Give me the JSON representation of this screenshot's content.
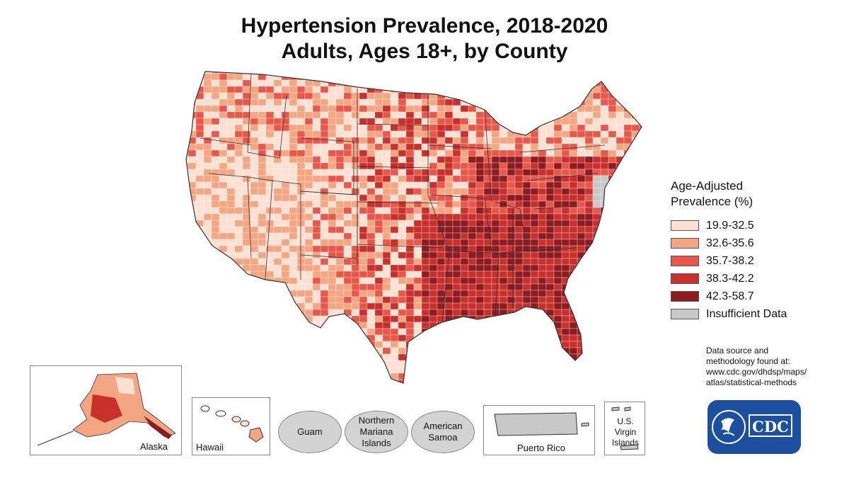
{
  "title": "Hypertension Prevalence, 2018-2020",
  "subtitle": "Adults, Ages 18+, by County",
  "legend": {
    "title_line1": "Age-Adjusted",
    "title_line2": "Prevalence (%)",
    "items": [
      {
        "label": "19.9-32.5",
        "color": "#fde0d2"
      },
      {
        "label": "32.6-35.6",
        "color": "#f4a582"
      },
      {
        "label": "35.7-38.2",
        "color": "#e8584a"
      },
      {
        "label": "38.3-42.2",
        "color": "#c8302c"
      },
      {
        "label": "42.3-58.7",
        "color": "#8e1b1f"
      },
      {
        "label": "Insufficient Data",
        "color": "#c8c8c8"
      }
    ]
  },
  "source": {
    "line1": "Data source and",
    "line2": "methodology found at:",
    "line3": "www.cdc.gov/dhdsp/maps/",
    "line4": "atlas/statistical-methods"
  },
  "insets": {
    "alaska": "Alaska",
    "hawaii": "Hawaii",
    "guam": "Guam",
    "northern_mariana": "Northern Mariana Islands",
    "american_samoa": "American Samoa",
    "puerto_rico": "Puerto Rico",
    "virgin_islands": "U.S. Virgin Islands"
  },
  "logo": {
    "text": "CDC"
  }
}
